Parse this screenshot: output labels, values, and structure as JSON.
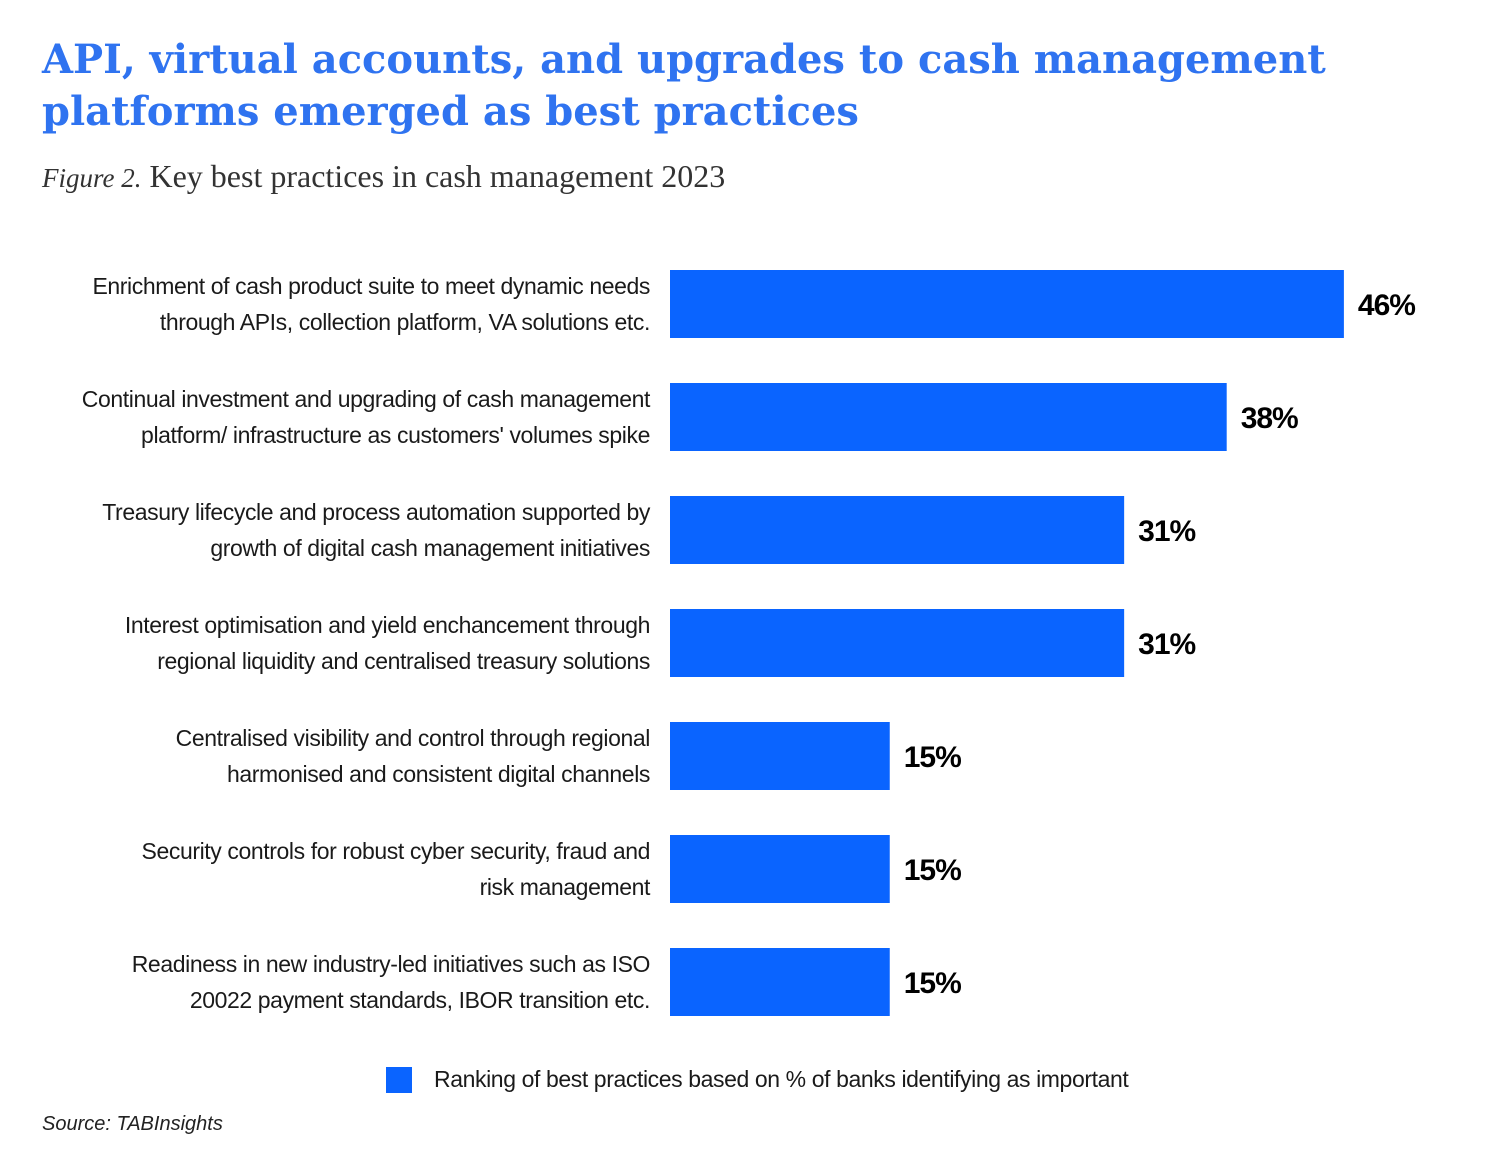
{
  "headline": "API, virtual accounts, and upgrades to cash management platforms emerged as best practices",
  "figure_number": "Figure 2.",
  "figure_title": "Key best practices in cash management 2023",
  "source": "Source: TABInsights",
  "colors": {
    "headline": "#2f73f0",
    "bar": "#0a64ff"
  },
  "chart_data": {
    "type": "bar",
    "orientation": "horizontal",
    "title": "Key best practices in cash management 2023",
    "categories": [
      [
        "Enrichment of cash product suite to meet dynamic needs",
        "through APIs, collection platform, VA solutions etc."
      ],
      [
        "Continual investment and upgrading of cash management",
        "platform/ infrastructure as customers' volumes spike"
      ],
      [
        "Treasury lifecycle and process automation supported by",
        "growth of digital cash management initiatives"
      ],
      [
        "Interest optimisation and yield enchancement through",
        "regional liquidity and centralised treasury solutions"
      ],
      [
        "Centralised visibility and control through regional",
        "harmonised and consistent digital channels"
      ],
      [
        "Security controls for robust cyber security, fraud and",
        "risk management"
      ],
      [
        "Readiness in new industry-led initiatives such as ISO",
        "20022 payment standards, IBOR transition etc."
      ]
    ],
    "series": [
      {
        "name": "Ranking of best practices based on % of banks identifying as important",
        "values": [
          46,
          38,
          31,
          31,
          15,
          15,
          15
        ],
        "labels": [
          "46%",
          "38%",
          "31%",
          "31%",
          "15%",
          "15%",
          "15%"
        ]
      }
    ],
    "unit": "%",
    "grid": false,
    "axes_visible": false,
    "legend_position": "bottom-center"
  }
}
